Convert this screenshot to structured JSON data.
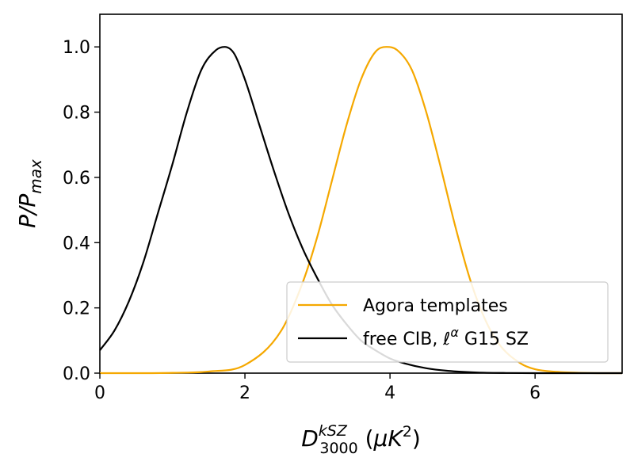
{
  "chart_data": {
    "type": "line",
    "xlabel": {
      "base": "D",
      "sup": "kSZ",
      "sub": "3000",
      "unit_open": " (",
      "unit_mu": "μ",
      "unit_K": "K",
      "unit_sup": "2",
      "unit_close": ")"
    },
    "ylabel": {
      "base": "P/P",
      "sub": "max"
    },
    "xlim": [
      0,
      7.2
    ],
    "ylim": [
      0,
      1.1
    ],
    "xticks": [
      0,
      2,
      4,
      6
    ],
    "xtick_labels": [
      "0",
      "2",
      "4",
      "6"
    ],
    "yticks": [
      0.0,
      0.2,
      0.4,
      0.6,
      0.8,
      1.0
    ],
    "ytick_labels": [
      "0.0",
      "0.2",
      "0.4",
      "0.6",
      "0.8",
      "1.0"
    ],
    "grid": false,
    "legend_position": "bottom-right",
    "series": [
      {
        "name": "Agora templates",
        "color": "#f5a800",
        "x": [
          0.0,
          0.5,
          1.0,
          1.5,
          2.0,
          2.5,
          2.8,
          3.0,
          3.2,
          3.4,
          3.6,
          3.8,
          3.95,
          4.1,
          4.3,
          4.5,
          4.7,
          4.9,
          5.1,
          5.3,
          5.5,
          5.8,
          6.0,
          6.3,
          6.6,
          7.0,
          7.2
        ],
        "y": [
          0.0,
          0.0,
          0.001,
          0.005,
          0.025,
          0.13,
          0.28,
          0.42,
          0.59,
          0.76,
          0.9,
          0.985,
          1.0,
          0.99,
          0.93,
          0.8,
          0.63,
          0.45,
          0.29,
          0.17,
          0.09,
          0.03,
          0.012,
          0.004,
          0.001,
          0.0,
          0.0
        ]
      },
      {
        "name": "free CIB, ℓ^α G15 SZ",
        "legend_label": {
          "prefix": "free CIB, ℓ",
          "sup": "α",
          "suffix": " G15 SZ"
        },
        "color": "#000000",
        "x": [
          0.0,
          0.2,
          0.4,
          0.6,
          0.8,
          1.0,
          1.2,
          1.4,
          1.6,
          1.72,
          1.85,
          2.0,
          2.2,
          2.4,
          2.6,
          2.8,
          3.0,
          3.2,
          3.4,
          3.6,
          3.8,
          4.0,
          4.2,
          4.5,
          4.8,
          5.2,
          5.6,
          6.0,
          7.2
        ],
        "y": [
          0.07,
          0.13,
          0.22,
          0.34,
          0.49,
          0.64,
          0.8,
          0.93,
          0.99,
          1.0,
          0.98,
          0.9,
          0.76,
          0.62,
          0.49,
          0.38,
          0.29,
          0.21,
          0.15,
          0.1,
          0.07,
          0.045,
          0.03,
          0.015,
          0.007,
          0.002,
          0.0005,
          0.0,
          0.0
        ]
      }
    ]
  }
}
